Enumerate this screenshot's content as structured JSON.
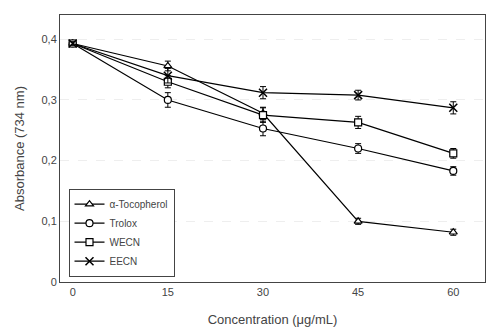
{
  "chart_data": {
    "type": "line",
    "x": [
      0,
      15,
      30,
      45,
      60
    ],
    "xlabel": "Concentration (μg/mL)",
    "ylabel": "Absorbance (734 nm)",
    "xlim": [
      -2,
      65
    ],
    "ylim": [
      0,
      0.44
    ],
    "xticks": [
      0,
      15,
      30,
      45,
      60
    ],
    "yticks": [
      0,
      {
        "value": 0.1,
        "label": "0,1"
      },
      {
        "value": 0.2,
        "label": "0,2"
      },
      {
        "value": 0.3,
        "label": "0,3"
      },
      {
        "value": 0.4,
        "label": "0,4"
      }
    ],
    "grid": true,
    "legend": "lower left",
    "color": "black",
    "series": [
      {
        "name": "α-Tocopherol",
        "marker": "triangle-up",
        "values": [
          0.393,
          0.356,
          0.278,
          0.1,
          0.082
        ],
        "errors": [
          0.003,
          0.008,
          0.01,
          0.005,
          0.005
        ]
      },
      {
        "name": "Trolox",
        "marker": "circle",
        "values": [
          0.393,
          0.3,
          0.253,
          0.22,
          0.183
        ],
        "errors": [
          0.003,
          0.012,
          0.012,
          0.008,
          0.007
        ]
      },
      {
        "name": "WECN",
        "marker": "square",
        "values": [
          0.393,
          0.33,
          0.275,
          0.263,
          0.212
        ],
        "errors": [
          0.003,
          0.01,
          0.012,
          0.01,
          0.008
        ]
      },
      {
        "name": "EECN",
        "marker": "x",
        "values": [
          0.393,
          0.34,
          0.312,
          0.308,
          0.287
        ],
        "errors": [
          0.003,
          0.012,
          0.01,
          0.008,
          0.01
        ]
      }
    ]
  }
}
